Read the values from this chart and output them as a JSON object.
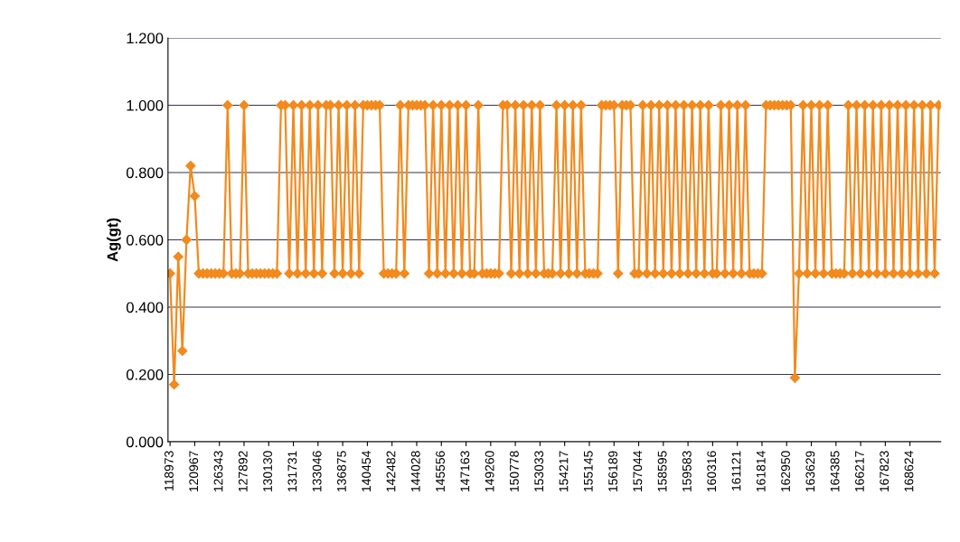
{
  "chart_data": {
    "type": "line",
    "ylabel": "Ag(gt)",
    "categories": [
      "118973",
      null,
      null,
      null,
      null,
      null,
      "120967",
      null,
      null,
      null,
      null,
      null,
      "126343",
      null,
      null,
      null,
      null,
      null,
      "127892",
      null,
      null,
      null,
      null,
      null,
      "130130",
      null,
      null,
      null,
      null,
      null,
      "131731",
      null,
      null,
      null,
      null,
      null,
      "133046",
      null,
      null,
      null,
      null,
      null,
      "136875",
      null,
      null,
      null,
      null,
      null,
      "140454",
      null,
      null,
      null,
      null,
      null,
      "142482",
      null,
      null,
      null,
      null,
      null,
      "144028",
      null,
      null,
      null,
      null,
      null,
      "145556",
      null,
      null,
      null,
      null,
      null,
      "147163",
      null,
      null,
      null,
      null,
      null,
      "149260",
      null,
      null,
      null,
      null,
      null,
      "150778",
      null,
      null,
      null,
      null,
      null,
      "153033",
      null,
      null,
      null,
      null,
      null,
      "154217",
      null,
      null,
      null,
      null,
      null,
      "155145",
      null,
      null,
      null,
      null,
      null,
      "156189",
      null,
      null,
      null,
      null,
      null,
      "157044",
      null,
      null,
      null,
      null,
      null,
      "158595",
      null,
      null,
      null,
      null,
      null,
      "159583",
      null,
      null,
      null,
      null,
      null,
      "160316",
      null,
      null,
      null,
      null,
      null,
      "161121",
      null,
      null,
      null,
      null,
      null,
      "161814",
      null,
      null,
      null,
      null,
      null,
      "162950",
      null,
      null,
      null,
      null,
      null,
      "163629",
      null,
      null,
      null,
      null,
      null,
      "164385",
      null,
      null,
      null,
      null,
      null,
      "166217",
      null,
      null,
      null,
      null,
      null,
      "167823",
      null,
      null,
      null,
      null,
      null,
      "168624",
      null,
      null,
      null,
      null,
      null,
      null,
      null
    ],
    "series": [
      {
        "color": "#f28a1e",
        "values": [
          0.5,
          0.17,
          0.55,
          0.27,
          0.6,
          0.82,
          0.73,
          0.5,
          0.5,
          0.5,
          0.5,
          0.5,
          0.5,
          0.5,
          1.0,
          0.5,
          0.5,
          0.5,
          1.0,
          0.5,
          0.5,
          0.5,
          0.5,
          0.5,
          0.5,
          0.5,
          0.5,
          1.0,
          1.0,
          0.5,
          1.0,
          0.5,
          1.0,
          0.5,
          1.0,
          0.5,
          1.0,
          0.5,
          1.0,
          1.0,
          0.5,
          1.0,
          0.5,
          1.0,
          0.5,
          1.0,
          0.5,
          1.0,
          1.0,
          1.0,
          1.0,
          1.0,
          0.5,
          0.5,
          0.5,
          0.5,
          1.0,
          0.5,
          1.0,
          1.0,
          1.0,
          1.0,
          1.0,
          0.5,
          1.0,
          0.5,
          1.0,
          0.5,
          1.0,
          0.5,
          1.0,
          0.5,
          1.0,
          0.5,
          0.5,
          1.0,
          0.5,
          0.5,
          0.5,
          0.5,
          0.5,
          1.0,
          1.0,
          0.5,
          1.0,
          0.5,
          1.0,
          0.5,
          1.0,
          0.5,
          1.0,
          0.5,
          0.5,
          0.5,
          1.0,
          0.5,
          1.0,
          0.5,
          1.0,
          0.5,
          1.0,
          0.5,
          0.5,
          0.5,
          0.5,
          1.0,
          1.0,
          1.0,
          1.0,
          0.5,
          1.0,
          1.0,
          1.0,
          0.5,
          0.5,
          1.0,
          0.5,
          1.0,
          0.5,
          1.0,
          0.5,
          1.0,
          0.5,
          1.0,
          0.5,
          1.0,
          0.5,
          1.0,
          0.5,
          1.0,
          0.5,
          1.0,
          0.5,
          0.5,
          1.0,
          0.5,
          1.0,
          0.5,
          1.0,
          0.5,
          1.0,
          0.5,
          0.5,
          0.5,
          0.5,
          1.0,
          1.0,
          1.0,
          1.0,
          1.0,
          1.0,
          1.0,
          0.19,
          0.5,
          1.0,
          0.5,
          1.0,
          0.5,
          1.0,
          0.5,
          1.0,
          0.5,
          0.5,
          0.5,
          0.5,
          1.0,
          0.5,
          1.0,
          0.5,
          1.0,
          0.5,
          1.0,
          0.5,
          1.0,
          0.5,
          1.0,
          0.5,
          1.0,
          0.5,
          1.0,
          0.5,
          1.0,
          0.5,
          1.0,
          0.5,
          1.0,
          0.5,
          1.0
        ]
      }
    ],
    "ylim": [
      0,
      1.2
    ],
    "yticks": [
      {
        "value": 0,
        "label": "0.000"
      },
      {
        "value": 0.2,
        "label": "0.200"
      },
      {
        "value": 0.4,
        "label": "0.400"
      },
      {
        "value": 0.6,
        "label": "0.600"
      },
      {
        "value": 0.8,
        "label": "0.800"
      },
      {
        "value": 1.0,
        "label": "1.000"
      },
      {
        "value": 1.2,
        "label": "1.200"
      }
    ],
    "grid": "y",
    "marker": "diamond",
    "line_style": "solid",
    "legend": false
  }
}
